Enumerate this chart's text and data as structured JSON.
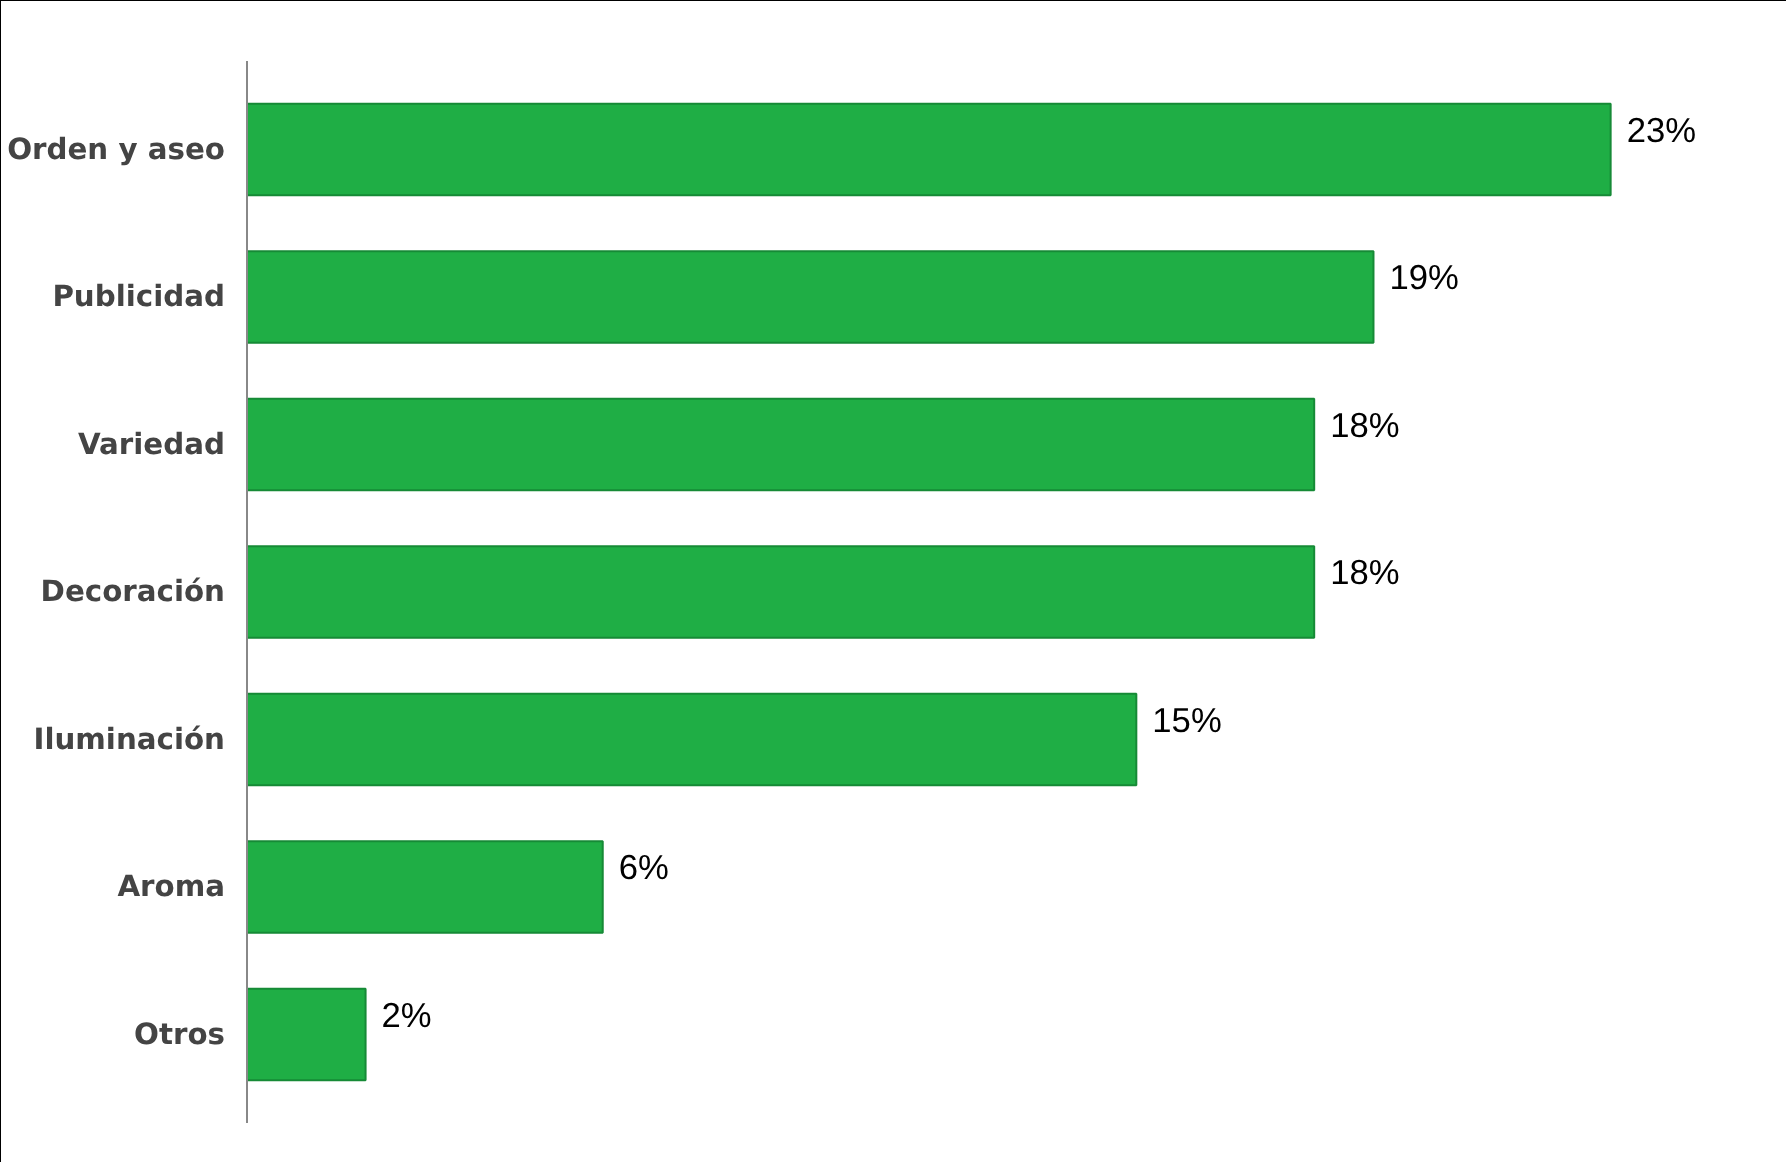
{
  "chart_data": {
    "type": "bar",
    "orientation": "horizontal",
    "categories": [
      "Orden y aseo",
      "Publicidad",
      "Variedad",
      "Decoración",
      "Iluminación",
      "Aroma",
      "Otros"
    ],
    "values": [
      23,
      19,
      18,
      18,
      15,
      6,
      2
    ],
    "value_labels": [
      "23%",
      "19%",
      "18%",
      "18%",
      "15%",
      "6%",
      "2%"
    ],
    "color": "#1fae45",
    "tick_labels": "y",
    "grid": false
  }
}
